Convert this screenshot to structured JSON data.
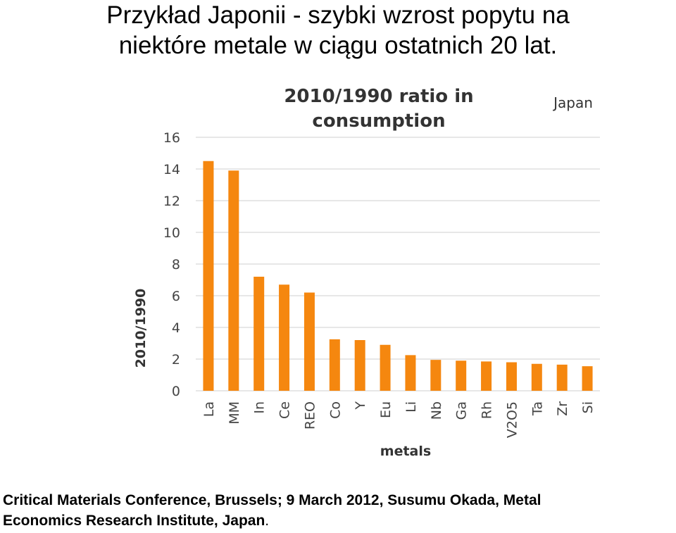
{
  "slide": {
    "title_line1": "Przykład Japonii - szybki wzrost popytu na",
    "title_line2": "niektóre metale  w ciągu ostatnich 20 lat."
  },
  "caption": {
    "line1": "Critical Materials Conference, Brussels; 9 March 2012, Susumu Okada, Metal",
    "line2": "Economics Research Institute, Japan",
    "line2_end": "."
  },
  "chart_data": {
    "type": "bar",
    "title_line1": "2010/1990 ratio in",
    "title_line2": "consumption",
    "subtitle": "Japan",
    "xlabel": "metals",
    "ylabel": "2010/1990",
    "ylim": [
      0,
      16
    ],
    "yticks": [
      "0",
      "2",
      "4",
      "6",
      "8",
      "10",
      "12",
      "14",
      "16"
    ],
    "grid": true,
    "bar_color": "#f5870f",
    "categories": [
      "La",
      "MM",
      "In",
      "Ce",
      "REO",
      "Co",
      "Y",
      "Eu",
      "Li",
      "Nb",
      "Ga",
      "Rh",
      "V2O5",
      "Ta",
      "Zr",
      "Si"
    ],
    "values": [
      14.5,
      13.9,
      7.2,
      6.7,
      6.2,
      3.25,
      3.2,
      2.9,
      2.25,
      1.95,
      1.9,
      1.85,
      1.8,
      1.7,
      1.65,
      1.55
    ]
  }
}
